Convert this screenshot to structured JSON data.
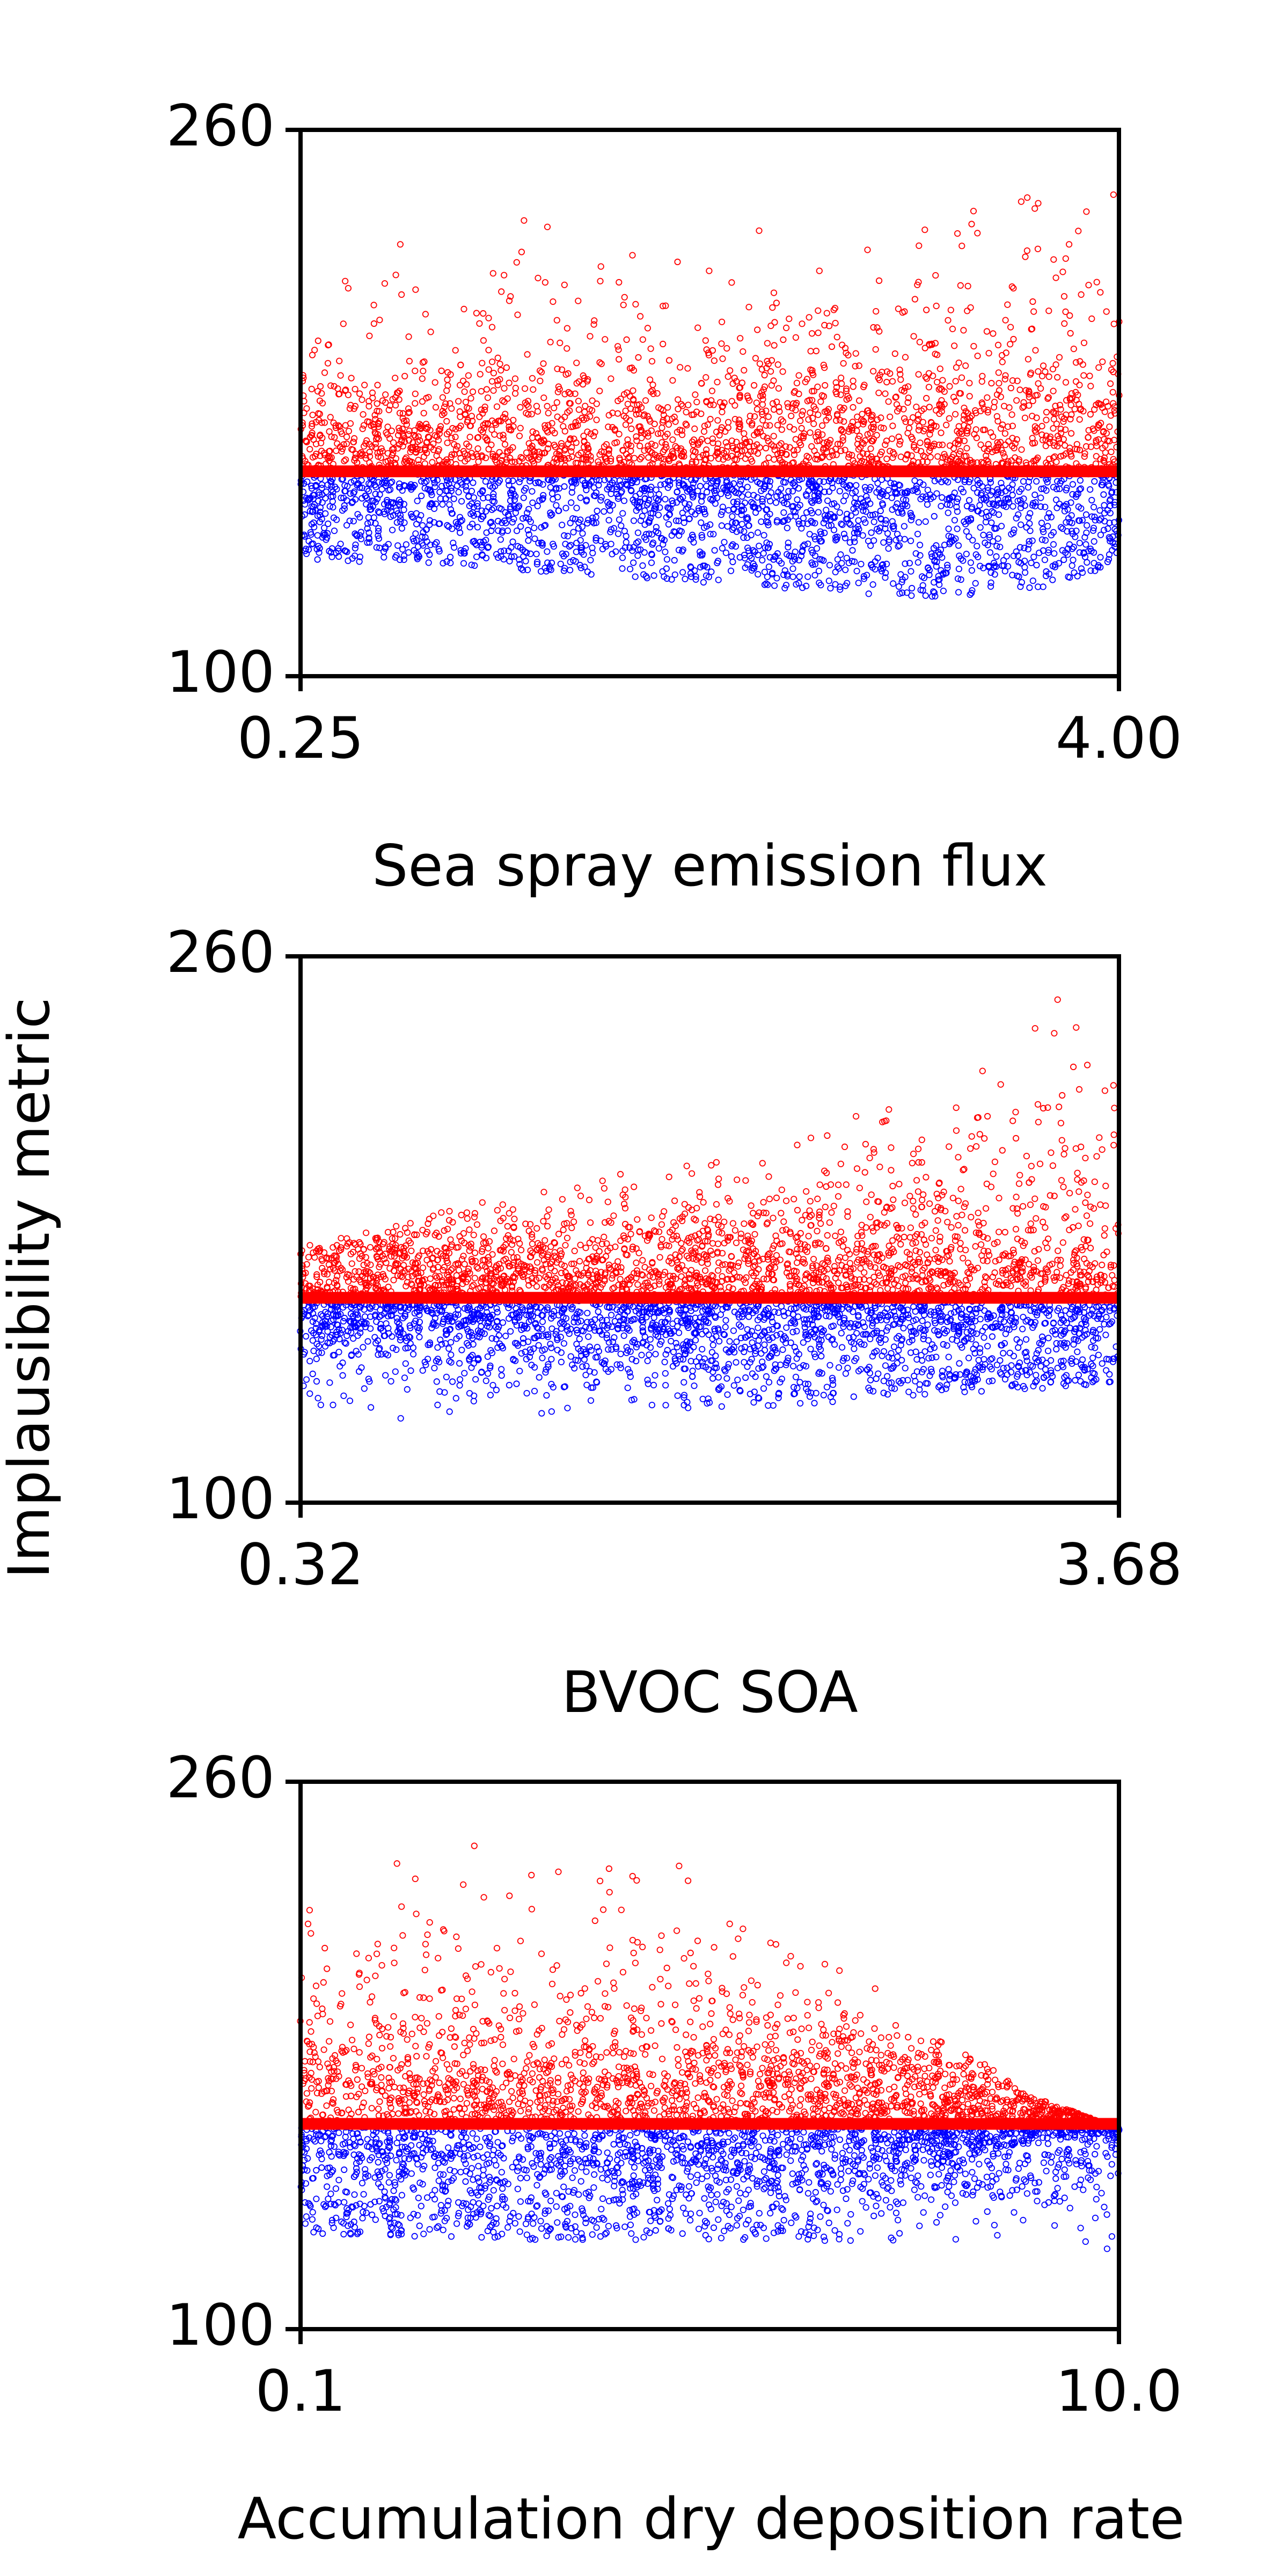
{
  "figure": {
    "ylabel": "Implausibility metric"
  },
  "chart_data": [
    {
      "type": "scatter",
      "xlabel": "Sea spray emission flux",
      "xlim": [
        0.25,
        4.0
      ],
      "x_scale": "linear",
      "x_tick_labels": [
        "0.25",
        "4.00"
      ],
      "ylim": [
        100,
        260
      ],
      "y_tick_labels": [
        "260",
        "100"
      ],
      "threshold": 160,
      "grid": false,
      "series": [
        {
          "color": "#ff0000",
          "values_above_threshold": true
        },
        {
          "color": "#0000ff",
          "values_above_threshold": false
        }
      ],
      "envelope": {
        "x": [
          0.25,
          0.8,
          1.5,
          2.2,
          2.8,
          3.2,
          3.6,
          3.9,
          4.0
        ],
        "blue_lower": [
          134,
          133,
          130,
          127,
          124,
          123,
          125,
          131,
          136
        ],
        "red_upper": [
          224,
          232,
          236,
          232,
          232,
          238,
          245,
          255,
          248
        ]
      }
    },
    {
      "type": "scatter",
      "xlabel": "BVOC SOA",
      "xlim": [
        0.32,
        3.68
      ],
      "x_scale": "linear",
      "x_tick_labels": [
        "0.32",
        "3.68"
      ],
      "ylim": [
        100,
        260
      ],
      "y_tick_labels": [
        "260",
        "100"
      ],
      "threshold": 160,
      "grid": false,
      "series": [
        {
          "color": "#ff0000",
          "values_above_threshold": true
        },
        {
          "color": "#0000ff",
          "values_above_threshold": false
        }
      ],
      "envelope": {
        "x": [
          0.32,
          1.0,
          1.6,
          2.2,
          2.8,
          3.3,
          3.68
        ],
        "blue_lower": [
          124,
          125,
          126,
          128,
          131,
          133,
          135
        ],
        "red_upper": [
          175,
          188,
          196,
          210,
          222,
          242,
          258
        ]
      }
    },
    {
      "type": "scatter",
      "xlabel": "Accumulation dry deposition rate",
      "xlim": [
        0.1,
        10.0
      ],
      "x_scale": "log",
      "x_tick_labels": [
        "0.1",
        "10.0"
      ],
      "ylim": [
        100,
        260
      ],
      "y_tick_labels": [
        "260",
        "100"
      ],
      "threshold": 160,
      "grid": false,
      "series": [
        {
          "color": "#ff0000",
          "values_above_threshold": true
        },
        {
          "color": "#0000ff",
          "values_above_threshold": false
        }
      ],
      "envelope": {
        "x": [
          0.1,
          0.2,
          0.4,
          0.8,
          1.5,
          3.0,
          6.0,
          10.0
        ],
        "blue_lower": [
          128,
          127,
          126,
          126,
          126,
          124,
          120,
          124
        ],
        "red_upper": [
          240,
          245,
          238,
          236,
          226,
          190,
          168,
          158
        ]
      }
    }
  ]
}
